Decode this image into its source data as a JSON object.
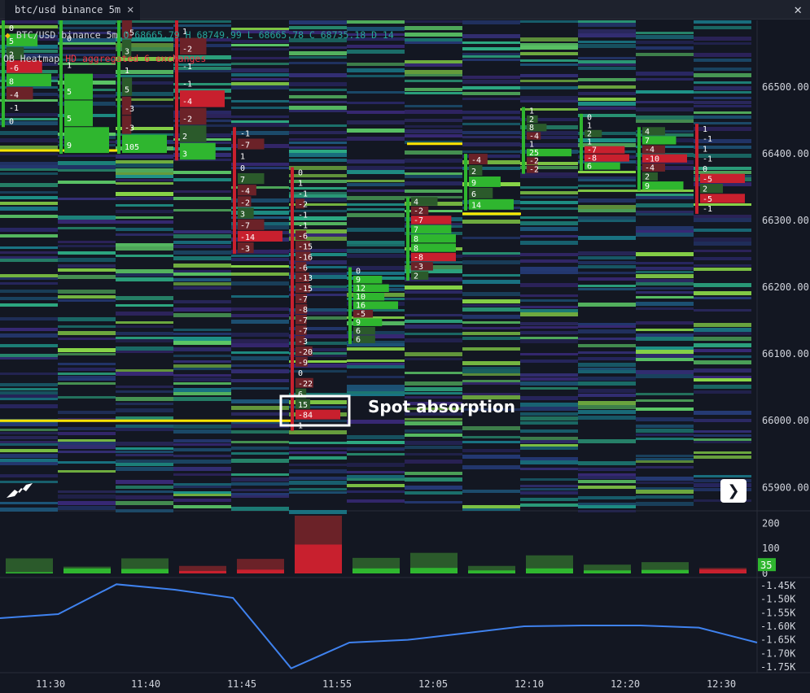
{
  "tab": {
    "label": "btc/usd binance 5m"
  },
  "legend": {
    "symbol": "BTC/USD binance 5m",
    "ohlc": "O 68665.79 H 68749.99 L 68665.78 C 68735.18 D 14",
    "heatmap": "OB Heatmap",
    "heatmap_detail": "HD aggregated 6 exchanges"
  },
  "annotation": "Spot absorption",
  "colors": {
    "background": "#131722",
    "buy": "#2fb62f",
    "sell": "#c8202e",
    "buy_dim": "#2b5a2b",
    "sell_dim": "#6b2228",
    "cvd_line": "#3f82ef",
    "level_line": "#ffe500"
  },
  "icons": {
    "close": "close-icon",
    "next": "chevron-right-icon",
    "logo": "tradingview-logo-icon",
    "exchange": "binance-icon"
  },
  "chart_data": [
    {
      "type": "heatmap",
      "title": "BTC/USD binance 5m",
      "x": [
        "11:30",
        "11:40",
        "11:45",
        "11:55",
        "12:05",
        "12:10",
        "12:20",
        "12:30"
      ],
      "y_ticks": [
        "66500.00",
        "66400.00",
        "66300.00",
        "66200.00",
        "66100.00",
        "66000.00",
        "65900.00"
      ],
      "ylim": [
        65865,
        66600
      ],
      "series": [
        {
          "bars": [
            {
              "lo": 66440,
              "hi": 66600,
              "deltas": [
                "0",
                "5",
                "2",
                "-6",
                "8",
                "-4",
                "-1",
                "0"
              ]
            },
            {
              "lo": 66400,
              "hi": 66600,
              "deltas": [
                "0",
                "1",
                "5",
                "5",
                "9"
              ]
            },
            {
              "lo": 66400,
              "hi": 66600,
              "deltas": [
                "-5",
                "3",
                "1",
                "5",
                "-3",
                "-3",
                "105"
              ]
            },
            {
              "lo": 66390,
              "hi": 66600,
              "deltas": [
                "1",
                "-2",
                "-1",
                "-1",
                "-4",
                "-2",
                "2",
                "3"
              ]
            },
            {
              "lo": 66250,
              "hi": 66440,
              "deltas": [
                "-1",
                "-7",
                "1",
                "0",
                "7",
                "-4",
                "-2",
                "3",
                "-7",
                "-14",
                "-3"
              ]
            },
            {
              "lo": 65985,
              "hi": 66380,
              "deltas": [
                "0",
                "1",
                "-1",
                "-2",
                "-1",
                "-1",
                "-6",
                "-15",
                "-16",
                "-6",
                "-13",
                "-15",
                "-7",
                "-8",
                "-7",
                "-7",
                "-3",
                "-20",
                "-9",
                "0",
                "-22",
                "6",
                "15",
                "-84",
                "1"
              ]
            },
            {
              "lo": 66115,
              "hi": 66230,
              "deltas": [
                "0",
                "9",
                "12",
                "10",
                "16",
                "-5",
                "9",
                "6",
                "6"
              ]
            },
            {
              "lo": 66210,
              "hi": 66335,
              "deltas": [
                "4",
                "-2",
                "-7",
                "7",
                "8",
                "8",
                "-8",
                "-3",
                "2"
              ]
            },
            {
              "lo": 66315,
              "hi": 66400,
              "deltas": [
                "-4",
                "2",
                "9",
                "6",
                "14"
              ]
            },
            {
              "lo": 66370,
              "hi": 66470,
              "deltas": [
                "1",
                "2",
                "8",
                "-4",
                "1",
                "25",
                "-2",
                "-2"
              ]
            },
            {
              "lo": 66375,
              "hi": 66460,
              "deltas": [
                "0",
                "1",
                "2",
                "1",
                "-7",
                "-8",
                "6"
              ]
            },
            {
              "lo": 66345,
              "hi": 66440,
              "deltas": [
                "4",
                "7",
                "-4",
                "-10",
                "-4",
                "2",
                "9"
              ]
            },
            {
              "lo": 66310,
              "hi": 66445,
              "deltas": [
                "1",
                "-1",
                "1",
                "-1",
                "0",
                "-5",
                "2",
                "-5",
                "-1"
              ]
            }
          ]
        }
      ]
    },
    {
      "type": "bar",
      "y_ticks": [
        "200",
        "100",
        "0"
      ],
      "ylim": [
        0,
        230
      ],
      "last_value": "35",
      "series": [
        {
          "name": "buy",
          "values": [
            5,
            20,
            18,
            4,
            5,
            0,
            20,
            22,
            12,
            20,
            12,
            14,
            0
          ]
        },
        {
          "name": "sell",
          "values": [
            5,
            0,
            0,
            10,
            15,
            115,
            0,
            0,
            0,
            0,
            0,
            0,
            16
          ]
        },
        {
          "name": "total",
          "values": [
            60,
            27,
            60,
            30,
            58,
            230,
            62,
            82,
            30,
            72,
            35,
            45,
            22
          ]
        }
      ]
    },
    {
      "type": "line",
      "y_ticks": [
        "-1.45K",
        "-1.50K",
        "-1.55K",
        "-1.60K",
        "-1.65K",
        "-1.70K",
        "-1.75K"
      ],
      "ylim": [
        -1.765,
        -1.435
      ],
      "series": [
        {
          "name": "cvd",
          "values": [
            -1.57,
            -1.555,
            -1.445,
            -1.465,
            -1.495,
            -1.755,
            -1.66,
            -1.65,
            -1.625,
            -1.6,
            -1.597,
            -1.597,
            -1.605,
            -1.66
          ]
        }
      ]
    }
  ]
}
